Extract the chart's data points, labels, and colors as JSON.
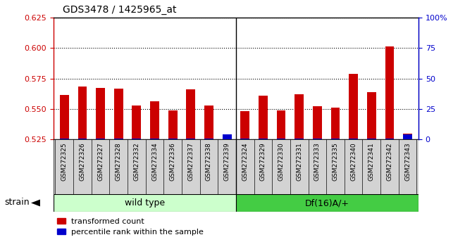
{
  "title": "GDS3478 / 1425965_at",
  "categories": [
    "GSM272325",
    "GSM272326",
    "GSM272327",
    "GSM272328",
    "GSM272332",
    "GSM272334",
    "GSM272336",
    "GSM272337",
    "GSM272338",
    "GSM272339",
    "GSM272324",
    "GSM272329",
    "GSM272330",
    "GSM272331",
    "GSM272333",
    "GSM272335",
    "GSM272340",
    "GSM272341",
    "GSM272342",
    "GSM272343"
  ],
  "red_values": [
    0.5615,
    0.5685,
    0.5675,
    0.5665,
    0.553,
    0.556,
    0.549,
    0.566,
    0.553,
    0.528,
    0.548,
    0.561,
    0.549,
    0.562,
    0.552,
    0.551,
    0.579,
    0.564,
    0.601,
    0.53
  ],
  "blue_values": [
    1,
    1,
    1,
    1,
    1,
    1,
    1,
    1,
    1,
    4,
    1,
    1,
    1,
    1,
    1,
    1,
    1,
    1,
    1,
    4
  ],
  "ylim_left": [
    0.525,
    0.625
  ],
  "ylim_right": [
    0,
    100
  ],
  "yticks_left": [
    0.525,
    0.55,
    0.575,
    0.6,
    0.625
  ],
  "yticks_right": [
    0,
    25,
    50,
    75,
    100
  ],
  "groups": [
    {
      "label": "wild type",
      "n": 10,
      "color": "#ccffcc"
    },
    {
      "label": "Df(16)A/+",
      "n": 10,
      "color": "#44cc44"
    }
  ],
  "bar_color_red": "#cc0000",
  "bar_color_blue": "#0000cc",
  "plot_bg": "#ffffff",
  "tick_area_bg": "#d0d0d0",
  "legend_red": "transformed count",
  "legend_blue": "percentile rank within the sample",
  "strain_label": "strain",
  "base_value": 0.525,
  "separator_idx": 9,
  "wt_color": "#ccffcc",
  "df_color": "#44cc44"
}
